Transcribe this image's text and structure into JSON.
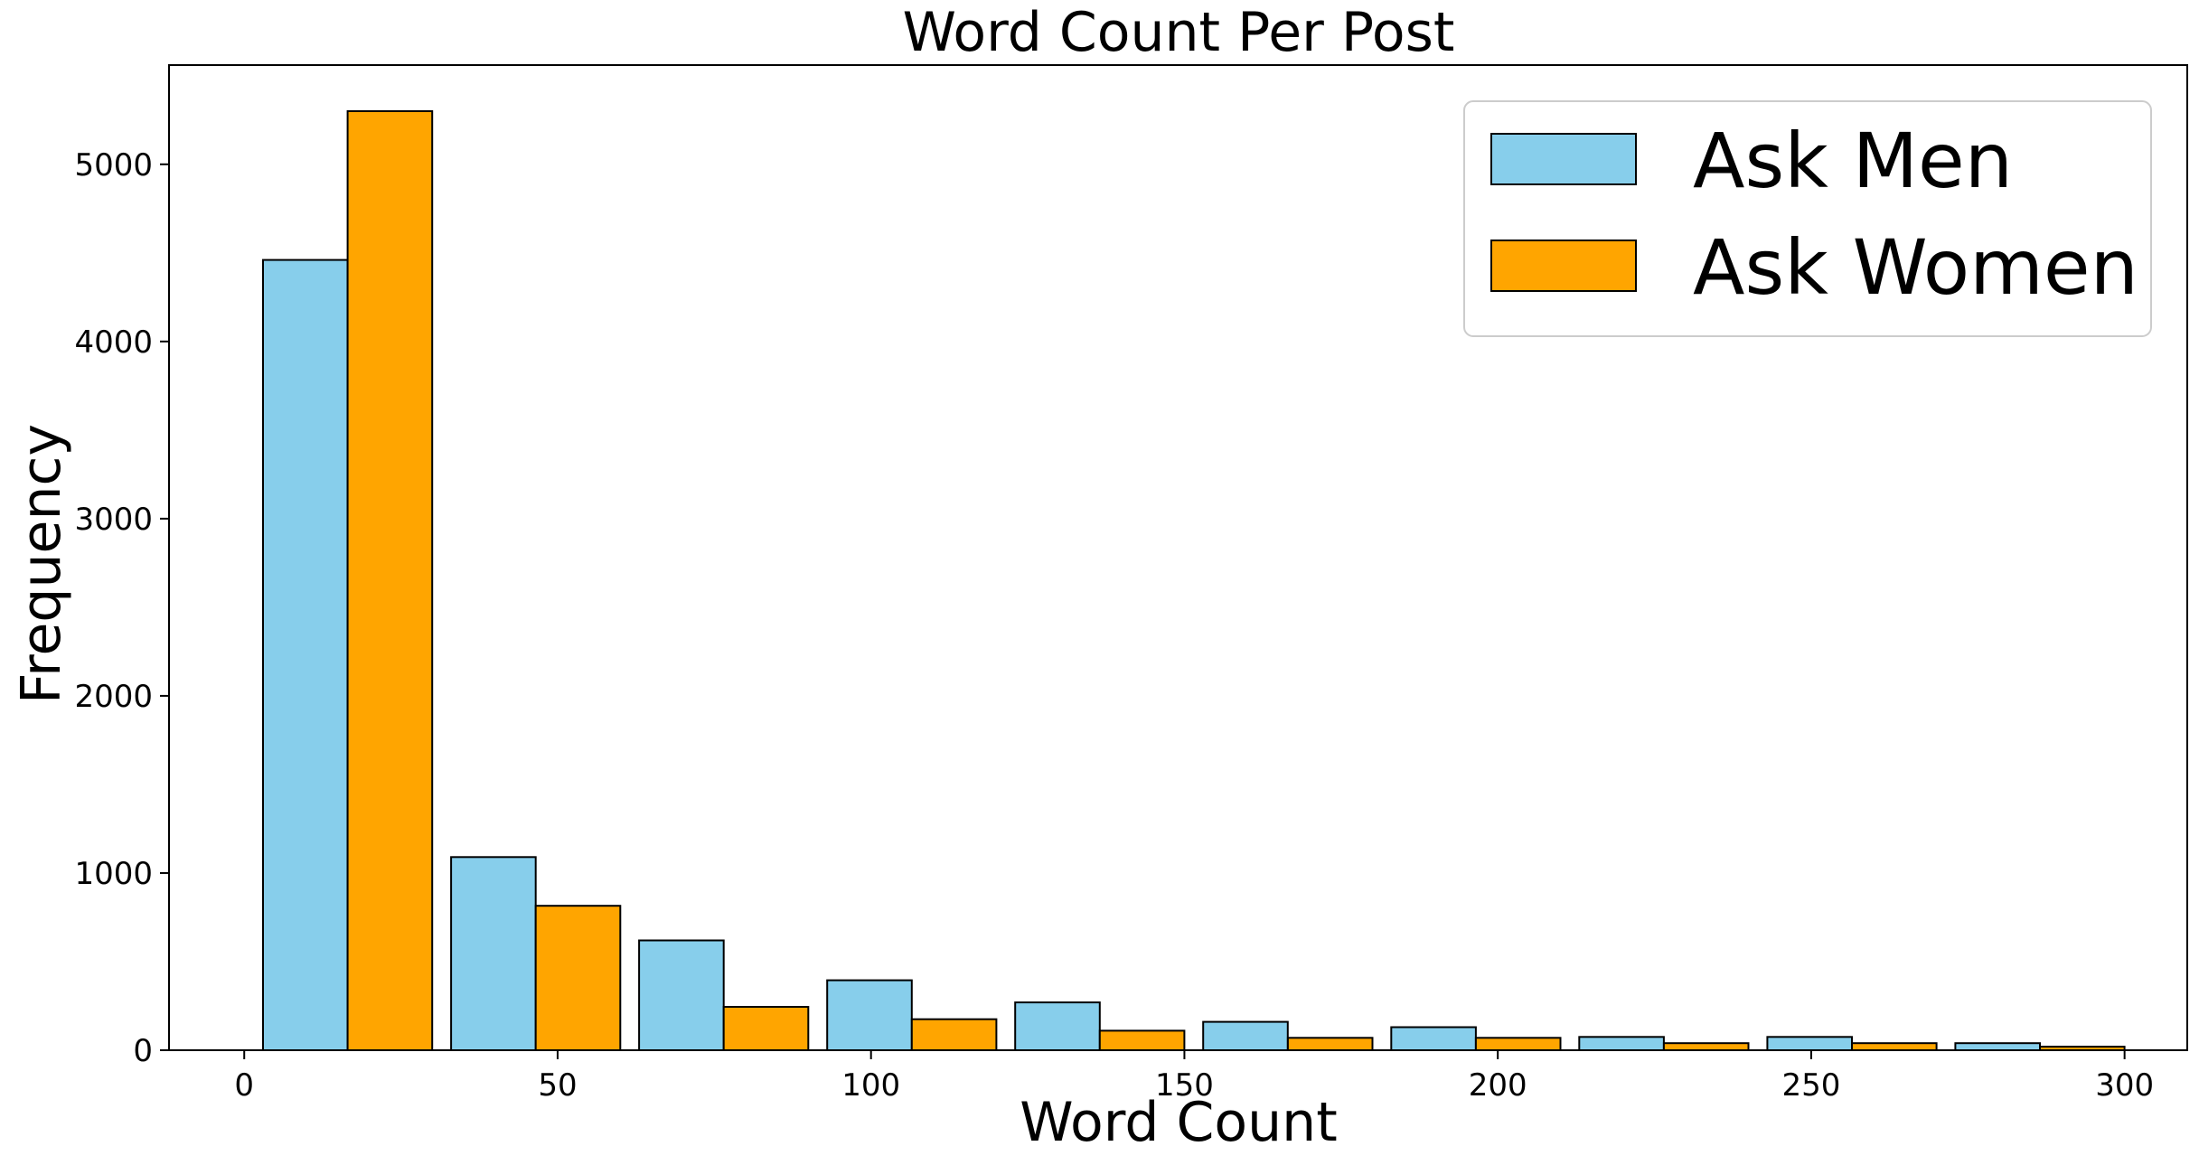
{
  "chart_data": {
    "type": "bar",
    "title": "Word Count Per Post",
    "xlabel": "Word Count",
    "ylabel": "Frequency",
    "x_ticks": [
      0,
      50,
      100,
      150,
      200,
      250,
      300
    ],
    "y_ticks": [
      0,
      1000,
      2000,
      3000,
      4000,
      5000
    ],
    "xlim": [
      -12,
      310
    ],
    "ylim": [
      0,
      5560
    ],
    "bin_edges": [
      3,
      33,
      63,
      93,
      123,
      153,
      183,
      213,
      243,
      273,
      303
    ],
    "series": [
      {
        "name": "Ask Men",
        "color": "#87ceeb",
        "values": [
          4460,
          1090,
          620,
          395,
          270,
          160,
          130,
          75,
          75,
          40
        ]
      },
      {
        "name": "Ask Women",
        "color": "#ffa500",
        "values": [
          5300,
          815,
          245,
          175,
          110,
          70,
          70,
          40,
          40,
          20
        ]
      }
    ],
    "grid": false,
    "legend_position": "top-right"
  }
}
